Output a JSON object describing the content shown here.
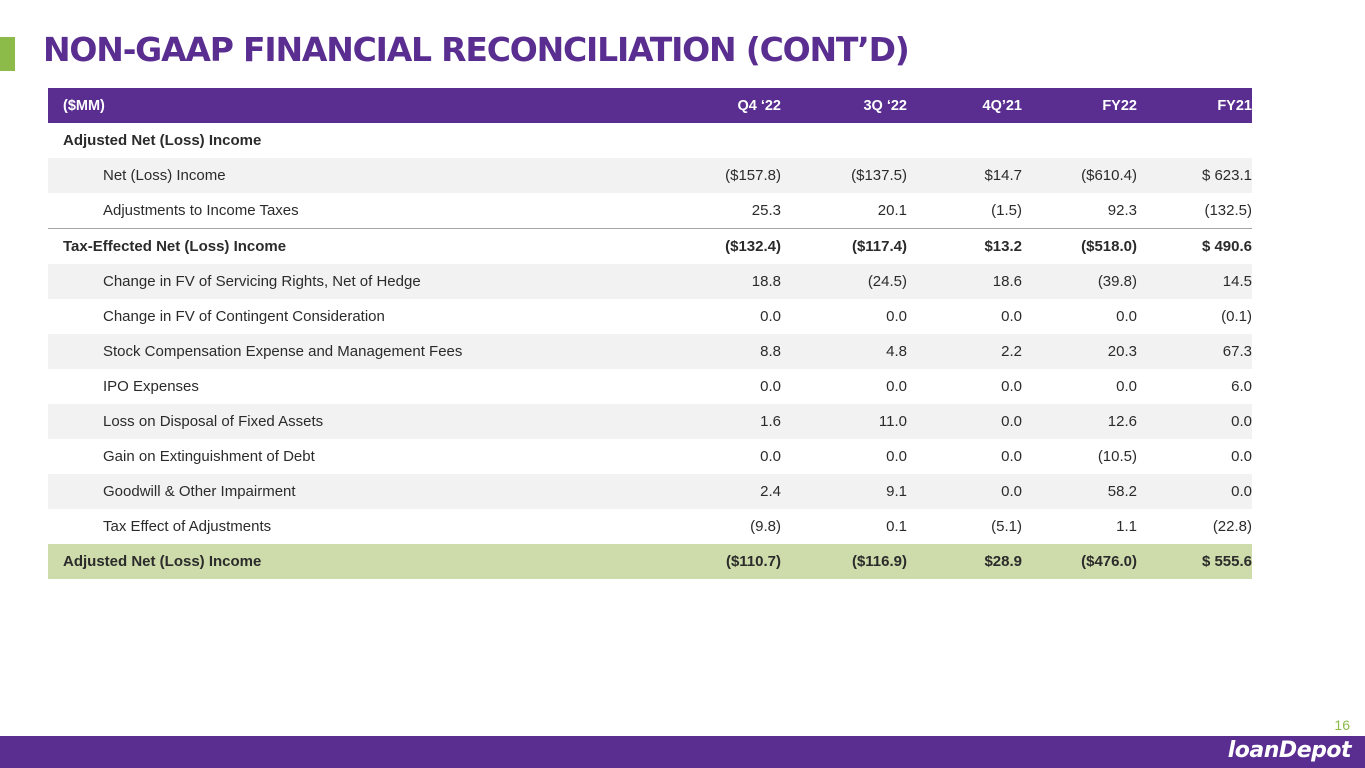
{
  "slide": {
    "title": "NON-GAAP FINANCIAL RECONCILIATION (CONT’D)",
    "page_number": "16",
    "logo_text": "loanDepot",
    "colors": {
      "brand_purple": "#5a2d91",
      "accent_green": "#8cbb4a",
      "total_row": "#cddcaa",
      "row_shade": "#f2f2f2"
    }
  },
  "table": {
    "headers": [
      "($MM)",
      "Q4 ‘22",
      "3Q ‘22",
      "4Q’21",
      "FY22",
      "FY21"
    ],
    "rows": [
      {
        "type": "section",
        "label": "Adjusted Net (Loss) Income",
        "values": [
          "",
          "",
          "",
          "",
          ""
        ]
      },
      {
        "type": "item",
        "label": "Net (Loss) Income",
        "values": [
          "($157.8)",
          "($137.5)",
          "$14.7",
          "($610.4)",
          "$ 623.1"
        ]
      },
      {
        "type": "item",
        "label": "Adjustments to Income Taxes",
        "values": [
          "25.3",
          "20.1",
          "(1.5)",
          "92.3",
          "(132.5)"
        ]
      },
      {
        "type": "subtotal",
        "label": "Tax-Effected Net (Loss) Income",
        "values": [
          "($132.4)",
          "($117.4)",
          "$13.2",
          "($518.0)",
          "$ 490.6"
        ]
      },
      {
        "type": "item",
        "label": "Change in FV of Servicing Rights, Net of Hedge",
        "values": [
          "18.8",
          "(24.5)",
          "18.6",
          "(39.8)",
          "14.5"
        ]
      },
      {
        "type": "item",
        "label": "Change in FV of Contingent Consideration",
        "values": [
          "0.0",
          "0.0",
          "0.0",
          "0.0",
          "(0.1)"
        ]
      },
      {
        "type": "item",
        "label": "Stock Compensation Expense and Management Fees",
        "values": [
          "8.8",
          "4.8",
          "2.2",
          "20.3",
          "67.3"
        ]
      },
      {
        "type": "item",
        "label": "IPO Expenses",
        "values": [
          "0.0",
          "0.0",
          "0.0",
          "0.0",
          "6.0"
        ]
      },
      {
        "type": "item",
        "label": "Loss on Disposal of Fixed Assets",
        "values": [
          "1.6",
          "11.0",
          "0.0",
          "12.6",
          "0.0"
        ]
      },
      {
        "type": "item",
        "label": "Gain on Extinguishment of Debt",
        "values": [
          "0.0",
          "0.0",
          "0.0",
          "(10.5)",
          "0.0"
        ]
      },
      {
        "type": "item",
        "label": "Goodwill & Other Impairment",
        "values": [
          "2.4",
          "9.1",
          "0.0",
          "58.2",
          "0.0"
        ]
      },
      {
        "type": "item",
        "label": "Tax Effect of Adjustments",
        "values": [
          "(9.8)",
          "0.1",
          "(5.1)",
          "1.1",
          "(22.8)"
        ]
      },
      {
        "type": "total",
        "label": "Adjusted Net (Loss) Income",
        "values": [
          "($110.7)",
          "($116.9)",
          "$28.9",
          "($476.0)",
          "$ 555.6"
        ]
      }
    ]
  }
}
